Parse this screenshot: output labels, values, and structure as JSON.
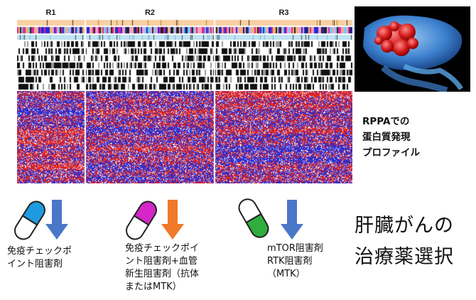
{
  "clusters": [
    {
      "label": "R1",
      "color": "#7bb0d6"
    },
    {
      "label": "R2",
      "color": "#f5b26e"
    },
    {
      "label": "R3",
      "color": "#a9d46b"
    }
  ],
  "colors": {
    "heat_red": "#e8251c",
    "heat_blue": "#1e2ee0",
    "heat_white": "#ffffff",
    "pill_blue": "#1e9be0",
    "pill_magenta": "#d426c9",
    "pill_green": "#2fae3e",
    "arrow_blue": "#4a77c8",
    "arrow_orange": "#ef7a2a",
    "arrow_blue2": "#4a77c8"
  },
  "liver_image": {
    "icon": "liver-tumor-illustration"
  },
  "rppa_label": [
    "RPPAでの",
    "蛋白質発現",
    "プロファイル"
  ],
  "treatments": [
    {
      "icon": "capsule-blue",
      "lines": [
        "免疫チェックポ",
        "イント阻害剤"
      ]
    },
    {
      "icon": "capsule-magenta",
      "lines": [
        "免疫チェックポイ",
        "ント阻害剤+血管",
        "新生阻害剤（抗体",
        "またはMTK）"
      ]
    },
    {
      "icon": "capsule-green",
      "lines": [
        "mTOR阻害剤",
        "RTK阻害剤",
        "（MTK）"
      ]
    }
  ],
  "title_lines": [
    "肝臓がんの",
    "治療薬選択"
  ]
}
